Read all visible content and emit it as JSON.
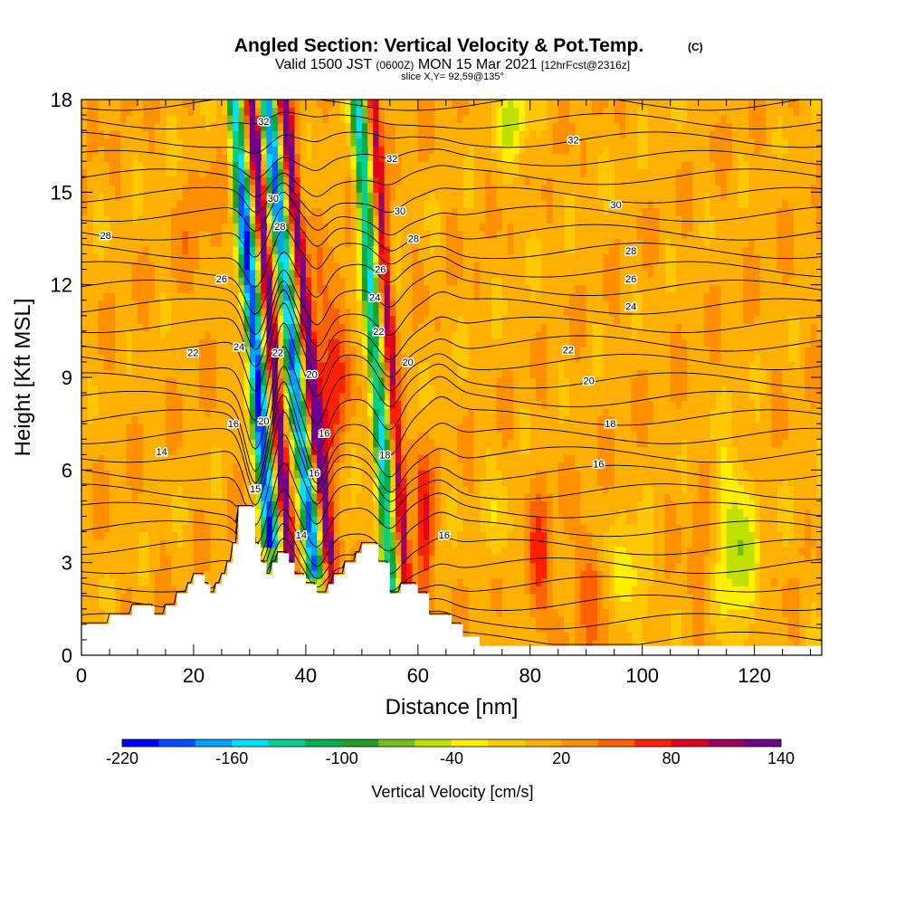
{
  "header": {
    "title": "Angled Section: Vertical Velocity & Pot.Temp.",
    "copyright": "(C)",
    "subtitle_a": "Valid 1500 JST",
    "subtitle_b": "(0600Z)",
    "subtitle_c": "MON 15 Mar 2021",
    "subtitle_d": "[12hrFcst@2316z]",
    "slice": "slice X,Y= 92,59@135°"
  },
  "chart_data": {
    "type": "heatmap",
    "title": "Angled Section: Vertical Velocity & Pot.Temp.",
    "xlabel": "Distance [nm]",
    "ylabel": "Height [Kft MSL]",
    "xlim": [
      0,
      132
    ],
    "ylim": [
      0,
      18
    ],
    "x_ticks": [
      0,
      20,
      40,
      60,
      80,
      100,
      120
    ],
    "y_ticks": [
      0,
      3,
      6,
      9,
      12,
      15,
      18
    ],
    "terrain": [
      [
        0,
        1.0
      ],
      [
        5,
        1.0
      ],
      [
        5,
        1.3
      ],
      [
        9,
        1.3
      ],
      [
        9,
        1.6
      ],
      [
        13,
        1.6
      ],
      [
        13,
        1.3
      ],
      [
        15,
        1.3
      ],
      [
        15,
        1.6
      ],
      [
        17,
        1.6
      ],
      [
        17,
        2.0
      ],
      [
        19,
        2.0
      ],
      [
        19,
        2.3
      ],
      [
        20,
        2.3
      ],
      [
        20,
        2.6
      ],
      [
        22,
        2.6
      ],
      [
        22,
        2.3
      ],
      [
        23,
        2.3
      ],
      [
        23,
        2.0
      ],
      [
        24,
        2.0
      ],
      [
        24,
        2.3
      ],
      [
        25,
        2.3
      ],
      [
        25,
        2.6
      ],
      [
        26,
        2.6
      ],
      [
        26,
        3.0
      ],
      [
        27,
        3.0
      ],
      [
        27,
        3.6
      ],
      [
        28,
        3.6
      ],
      [
        28,
        4.8
      ],
      [
        31,
        4.8
      ],
      [
        31,
        3.6
      ],
      [
        32,
        3.6
      ],
      [
        32,
        3.0
      ],
      [
        33,
        3.0
      ],
      [
        33,
        2.6
      ],
      [
        34,
        2.6
      ],
      [
        34,
        3.0
      ],
      [
        35,
        3.0
      ],
      [
        35,
        3.3
      ],
      [
        37,
        3.3
      ],
      [
        37,
        3.0
      ],
      [
        38,
        3.0
      ],
      [
        38,
        2.6
      ],
      [
        40,
        2.6
      ],
      [
        40,
        2.3
      ],
      [
        42,
        2.3
      ],
      [
        42,
        2.0
      ],
      [
        44,
        2.0
      ],
      [
        44,
        2.3
      ],
      [
        45,
        2.3
      ],
      [
        45,
        2.6
      ],
      [
        47,
        2.6
      ],
      [
        47,
        3.0
      ],
      [
        49,
        3.0
      ],
      [
        49,
        3.3
      ],
      [
        50,
        3.3
      ],
      [
        50,
        3.6
      ],
      [
        53,
        3.6
      ],
      [
        53,
        3.0
      ],
      [
        55,
        3.0
      ],
      [
        55,
        2.0
      ],
      [
        57,
        2.0
      ],
      [
        57,
        2.3
      ],
      [
        60,
        2.3
      ],
      [
        60,
        2.0
      ],
      [
        62,
        2.0
      ],
      [
        62,
        1.3
      ],
      [
        66,
        1.3
      ],
      [
        66,
        1.0
      ],
      [
        68,
        1.0
      ],
      [
        68,
        0.6
      ],
      [
        71,
        0.6
      ],
      [
        71,
        0.3
      ],
      [
        132,
        0.3
      ]
    ],
    "theta_contours": [
      {
        "label": "14",
        "x": 14.3,
        "y": 6.6
      },
      {
        "label": "14",
        "x": 39.2,
        "y": 3.9
      },
      {
        "label": "15",
        "x": 31.0,
        "y": 5.4
      },
      {
        "label": "16",
        "x": 27.1,
        "y": 7.5
      },
      {
        "label": "16",
        "x": 41.5,
        "y": 5.9
      },
      {
        "label": "16",
        "x": 43.3,
        "y": 7.2
      },
      {
        "label": "16",
        "x": 64.7,
        "y": 3.9
      },
      {
        "label": "16",
        "x": 92.2,
        "y": 6.2
      },
      {
        "label": "18",
        "x": 54.1,
        "y": 6.5
      },
      {
        "label": "18",
        "x": 94.3,
        "y": 7.5
      },
      {
        "label": "20",
        "x": 32.5,
        "y": 7.6
      },
      {
        "label": "20",
        "x": 41.1,
        "y": 9.1
      },
      {
        "label": "20",
        "x": 58.2,
        "y": 9.5
      },
      {
        "label": "20",
        "x": 90.5,
        "y": 8.9
      },
      {
        "label": "22",
        "x": 19.9,
        "y": 9.8
      },
      {
        "label": "22",
        "x": 35.0,
        "y": 9.8
      },
      {
        "label": "22",
        "x": 53.0,
        "y": 10.5
      },
      {
        "label": "22",
        "x": 86.8,
        "y": 9.9
      },
      {
        "label": "24",
        "x": 28.1,
        "y": 10.0
      },
      {
        "label": "24",
        "x": 52.3,
        "y": 11.6
      },
      {
        "label": "24",
        "x": 98.0,
        "y": 11.3
      },
      {
        "label": "26",
        "x": 25.0,
        "y": 12.2
      },
      {
        "label": "26",
        "x": 53.3,
        "y": 12.5
      },
      {
        "label": "26",
        "x": 98.0,
        "y": 12.2
      },
      {
        "label": "28",
        "x": 4.3,
        "y": 13.6
      },
      {
        "label": "28",
        "x": 35.4,
        "y": 13.9
      },
      {
        "label": "28",
        "x": 59.2,
        "y": 13.5
      },
      {
        "label": "28",
        "x": 98.0,
        "y": 13.1
      },
      {
        "label": "30",
        "x": 34.2,
        "y": 14.8
      },
      {
        "label": "30",
        "x": 56.8,
        "y": 14.4
      },
      {
        "label": "30",
        "x": 95.3,
        "y": 14.6
      },
      {
        "label": "32",
        "x": 32.5,
        "y": 17.3
      },
      {
        "label": "32",
        "x": 55.4,
        "y": 16.1
      },
      {
        "label": "32",
        "x": 87.7,
        "y": 16.7
      }
    ],
    "colorbar": {
      "label": "Vertical Velocity [cm/s]",
      "min": -220,
      "max": 140,
      "step": 20,
      "tick_labels": [
        "-220",
        "-160",
        "-100",
        "-40",
        "20",
        "80",
        "140"
      ],
      "colors": [
        "#0000ff",
        "#0050ff",
        "#00a0ff",
        "#00e0ff",
        "#00d090",
        "#00b050",
        "#20a020",
        "#70c020",
        "#c0e000",
        "#ffef00",
        "#ffc800",
        "#ffb000",
        "#ff9000",
        "#ff6000",
        "#ff2000",
        "#e00020",
        "#a00060",
        "#700090"
      ]
    }
  }
}
